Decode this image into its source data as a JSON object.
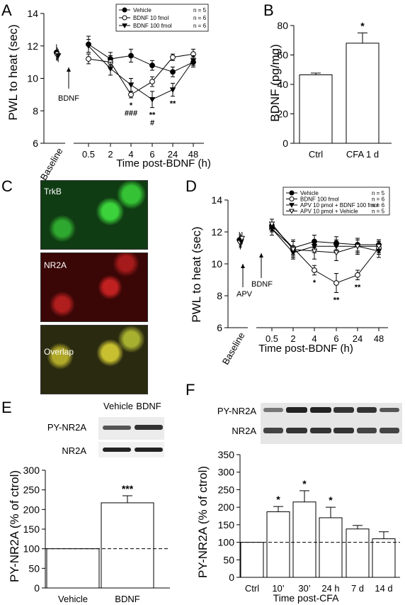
{
  "panel_labels": {
    "a": "A",
    "b": "B",
    "c": "C",
    "d": "D",
    "e": "E",
    "f": "F"
  },
  "chart_data": [
    {
      "panel": "A",
      "type": "line",
      "ylabel": "PWL to heat (sec)",
      "xlabel": "Time post-BDNF (h)",
      "ylim": [
        6,
        14
      ],
      "yticks": [
        "6",
        "8",
        "10",
        "12",
        "14"
      ],
      "baseline_label": "Baseline",
      "categories": [
        "0.5",
        "2",
        "4",
        "6",
        "24",
        "48"
      ],
      "annotation": "BDNF",
      "series": [
        {
          "name": "Vehicle",
          "n": "n = 5",
          "marker": "filled-circle",
          "baseline": 11.6,
          "baseline_err": 0.5,
          "values": [
            12.1,
            11.2,
            11.4,
            10.8,
            10.4,
            11.0
          ],
          "errors": [
            0.5,
            0.4,
            0.4,
            0.3,
            0.3,
            0.3
          ]
        },
        {
          "name": "BDNF 10 fmol",
          "n": "n = 6",
          "marker": "open-circle",
          "baseline": 11.5,
          "baseline_err": 0.4,
          "values": [
            11.2,
            11.0,
            9.0,
            9.8,
            11.3,
            11.5
          ],
          "errors": [
            0.3,
            0.4,
            0.2,
            0.3,
            0.2,
            0.3
          ]
        },
        {
          "name": "BDNF 100 fmol",
          "n": "n = 6",
          "marker": "filled-triangle",
          "baseline": 11.4,
          "baseline_err": 0.4,
          "values": [
            12.0,
            10.6,
            9.6,
            8.7,
            9.3,
            11.1
          ],
          "errors": [
            0.4,
            0.4,
            0.4,
            0.5,
            0.4,
            0.3
          ]
        }
      ],
      "significance": [
        {
          "category": "4",
          "lines": [
            "*",
            "###"
          ]
        },
        {
          "category": "6",
          "lines": [
            "**",
            "#"
          ]
        },
        {
          "category": "24",
          "lines": [
            "**"
          ]
        }
      ]
    },
    {
      "panel": "B",
      "type": "bar",
      "ylabel": "BDNF (pg/mg)",
      "ylim": [
        0,
        80
      ],
      "yticks": [
        "0",
        "20",
        "40",
        "60",
        "80"
      ],
      "categories": [
        "Ctrl",
        "CFA 1 d"
      ],
      "values": [
        46.5,
        68
      ],
      "errors": [
        1.2,
        7
      ],
      "significance": [
        "",
        "*"
      ]
    },
    {
      "panel": "D",
      "type": "line",
      "ylabel": "PWL to heat (sec)",
      "xlabel": "Time post-BDNF (h)",
      "ylim": [
        6,
        14
      ],
      "yticks": [
        "6",
        "8",
        "10",
        "12",
        "14"
      ],
      "baseline_label": "Baseline",
      "categories": [
        "0.5",
        "2",
        "4",
        "6",
        "24",
        "48"
      ],
      "annotations": [
        "APV",
        "BDNF"
      ],
      "series": [
        {
          "name": "Vehicle",
          "n": "n = 5",
          "marker": "filled-circle",
          "baseline": 11.5,
          "baseline_err": 0.5,
          "values": [
            12.4,
            11.0,
            11.4,
            11.3,
            11.2,
            11.2
          ],
          "errors": [
            0.4,
            0.5,
            0.4,
            0.4,
            0.4,
            0.3
          ]
        },
        {
          "name": "BDNF 100 fmol",
          "n": "n = 6",
          "marker": "open-circle",
          "baseline": 11.4,
          "baseline_err": 0.5,
          "values": [
            12.2,
            11.0,
            9.6,
            8.8,
            9.3,
            11.0
          ],
          "errors": [
            0.4,
            0.4,
            0.3,
            0.6,
            0.3,
            0.4
          ]
        },
        {
          "name": "APV 10 pmol + BDNF 100 fmol",
          "n": "n = 6",
          "marker": "filled-triangle",
          "baseline": 11.4,
          "baseline_err": 0.4,
          "values": [
            12.2,
            10.7,
            11.1,
            11.1,
            11.1,
            10.8
          ],
          "errors": [
            0.4,
            0.4,
            0.4,
            0.4,
            0.4,
            0.4
          ]
        },
        {
          "name": "APV 10 pmol + Vehicle",
          "n": "n = 5",
          "marker": "open-triangle",
          "baseline": 11.6,
          "baseline_err": 0.4,
          "values": [
            12.5,
            10.9,
            10.8,
            10.7,
            11.1,
            11.1
          ],
          "errors": [
            0.3,
            0.5,
            0.5,
            0.5,
            0.5,
            0.4
          ]
        }
      ],
      "significance": [
        {
          "category": "4",
          "lines": [
            "*"
          ]
        },
        {
          "category": "6",
          "lines": [
            "**"
          ]
        },
        {
          "category": "24",
          "lines": [
            "**"
          ]
        }
      ]
    },
    {
      "panel": "E",
      "type": "bar",
      "ylabel": "PY-NR2A (% of ctrol)",
      "ylim": [
        0,
        300
      ],
      "yticks": [
        "0",
        "50",
        "100",
        "150",
        "200",
        "250",
        "300"
      ],
      "categories": [
        "Vehicle",
        "BDNF"
      ],
      "values": [
        100,
        217
      ],
      "errors": [
        0,
        18
      ],
      "significance": [
        "",
        "***"
      ],
      "reference_line": 100
    },
    {
      "panel": "F",
      "type": "bar",
      "ylabel": "PY-NR2A (% of ctrol)",
      "xlabel": "Time post-CFA",
      "ylim": [
        0,
        350
      ],
      "yticks": [
        "0",
        "50",
        "100",
        "150",
        "200",
        "250",
        "300",
        "350"
      ],
      "categories": [
        "Ctrl",
        "10’",
        "30’",
        "24 h",
        "7 d",
        "14 d"
      ],
      "values": [
        100,
        187,
        215,
        170,
        138,
        110
      ],
      "errors": [
        0,
        15,
        32,
        30,
        10,
        20
      ],
      "significance": [
        "",
        "*",
        "*",
        "*",
        "",
        ""
      ],
      "reference_line": 100
    }
  ],
  "micrographs": {
    "labels": [
      "TrkB",
      "NR2A",
      "Overlap"
    ],
    "colors": [
      "#1e7a1e",
      "#8a1616",
      "#7a6a1a"
    ]
  },
  "blots": {
    "e": {
      "columns": [
        "Vehicle",
        "BDNF"
      ],
      "rows": [
        "PY-NR2A",
        "NR2A"
      ]
    },
    "f": {
      "columns": [
        "Ctrl",
        "10’",
        "30’",
        "24 h",
        "7 d",
        "14 d"
      ],
      "rows": [
        "PY-NR2A",
        "NR2A"
      ]
    }
  }
}
